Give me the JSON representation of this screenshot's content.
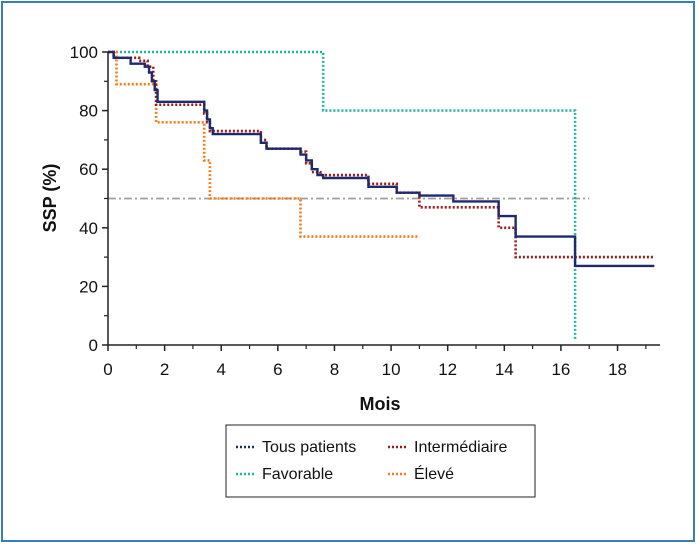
{
  "chart_data": {
    "type": "line",
    "title": "",
    "xlabel": "Mois",
    "ylabel": "SSP (%)",
    "xlim": [
      0,
      19.5
    ],
    "ylim": [
      0,
      100
    ],
    "xticks": [
      0,
      2,
      4,
      6,
      8,
      10,
      12,
      14,
      16,
      18
    ],
    "yticks": [
      0,
      20,
      40,
      60,
      80,
      100
    ],
    "grid": false,
    "legend_position": "bottom-center",
    "reference_line": {
      "y": 50,
      "x_range": [
        0,
        17
      ],
      "style": "dash-dot",
      "color": "#9e9e9e"
    },
    "series": [
      {
        "name": "Tous patients",
        "color": "#1f2a6e",
        "style": "solid-step",
        "x": [
          0,
          0.2,
          0.8,
          1.3,
          1.45,
          1.55,
          1.65,
          1.75,
          3.4,
          3.5,
          3.6,
          3.7,
          5.4,
          5.6,
          6.8,
          7.0,
          7.2,
          7.4,
          7.6,
          9.2,
          10.2,
          11.0,
          12.2,
          13.8,
          14.4,
          16.5,
          19.3
        ],
        "y": [
          100,
          98,
          96,
          95,
          93,
          90,
          87,
          83,
          80,
          77,
          74,
          72,
          69,
          67,
          65,
          63,
          60,
          58,
          57,
          54,
          52,
          51,
          49,
          44,
          37,
          27,
          27
        ]
      },
      {
        "name": "Intermédiaire",
        "color": "#a01818",
        "style": "dotted-step",
        "x": [
          0,
          0.2,
          1.1,
          1.4,
          1.6,
          1.7,
          3.4,
          3.5,
          3.6,
          5.4,
          5.6,
          6.8,
          7.0,
          7.2,
          7.5,
          9.2,
          10.2,
          11.0,
          13.8,
          14.4,
          19.3
        ],
        "y": [
          100,
          98,
          97,
          95,
          90,
          82,
          79,
          76,
          73,
          70,
          67,
          66,
          62,
          59,
          58,
          55,
          52,
          47,
          40,
          30,
          30
        ]
      },
      {
        "name": "Favorable",
        "color": "#25b6a0",
        "style": "dotted-step",
        "x": [
          0,
          7.6,
          16.5,
          16.5
        ],
        "y": [
          100,
          80,
          80,
          2
        ]
      },
      {
        "name": "Élevé",
        "color": "#f07d1c",
        "style": "dotted-step",
        "x": [
          0,
          0.3,
          1.7,
          3.4,
          3.6,
          6.8,
          11.0
        ],
        "y": [
          100,
          89,
          76,
          63,
          50,
          37,
          37
        ]
      }
    ]
  }
}
